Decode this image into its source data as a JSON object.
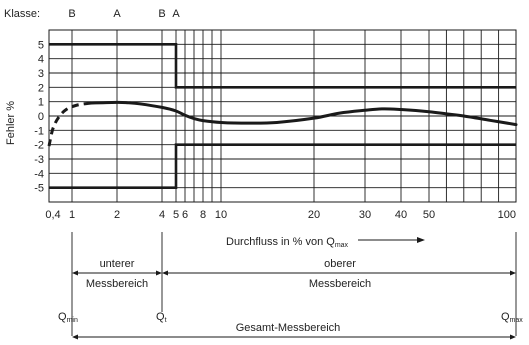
{
  "diagram": {
    "class_label": "Klasse:",
    "class_marks": [
      {
        "x": 1,
        "label": "B"
      },
      {
        "x": 2,
        "label": "A"
      },
      {
        "x": 4,
        "label": "B"
      },
      {
        "x": 5,
        "label": "A"
      }
    ],
    "y_axis_label": "Fehler %",
    "y_ticks": [
      5,
      4,
      3,
      2,
      1,
      0,
      -1,
      -2,
      -3,
      -4,
      -5
    ],
    "y_range": [
      -6,
      6
    ],
    "x_ticks": [
      {
        "value": 0.4,
        "label": "0,4"
      },
      {
        "value": 1,
        "label": "1"
      },
      {
        "value": 2,
        "label": "2"
      },
      {
        "value": 4,
        "label": "4"
      },
      {
        "value": 5,
        "label": "5"
      },
      {
        "value": 6,
        "label": "6"
      },
      {
        "value": 8,
        "label": "8"
      },
      {
        "value": 10,
        "label": "10"
      },
      {
        "value": 20,
        "label": "20"
      },
      {
        "value": 30,
        "label": "30"
      },
      {
        "value": 40,
        "label": "40"
      },
      {
        "value": 50,
        "label": "50"
      },
      {
        "value": 100,
        "label": "100"
      }
    ],
    "x_gridlines": [
      1,
      2,
      4,
      5,
      6,
      7,
      8,
      9,
      10,
      20,
      30,
      40,
      50,
      60,
      70,
      80,
      90
    ],
    "x_axis_label": {
      "text": "Durchfluss in % von Q",
      "subscript": "max"
    },
    "error_limits": {
      "upper": [
        {
          "from": 0.4,
          "to": 5,
          "value": 5
        },
        {
          "from": 5,
          "to": 100,
          "value": 2
        }
      ],
      "lower": [
        {
          "from": 0.4,
          "to": 5,
          "value": -5
        },
        {
          "from": 5,
          "to": 100,
          "value": -2
        }
      ]
    },
    "error_curve": {
      "dashed": [
        [
          0.4,
          -2.1
        ],
        [
          0.5,
          -0.9
        ],
        [
          0.65,
          -0.1
        ],
        [
          0.85,
          0.45
        ],
        [
          1.1,
          0.75
        ],
        [
          1.4,
          0.9
        ]
      ],
      "solid": [
        [
          1.4,
          0.9
        ],
        [
          2,
          0.95
        ],
        [
          2.5,
          0.92
        ],
        [
          3,
          0.85
        ],
        [
          4,
          0.6
        ],
        [
          5,
          0.35
        ],
        [
          6,
          0.05
        ],
        [
          7,
          -0.18
        ],
        [
          8,
          -0.32
        ],
        [
          10,
          -0.45
        ],
        [
          13,
          -0.5
        ],
        [
          16,
          -0.45
        ],
        [
          20,
          -0.15
        ],
        [
          25,
          0.2
        ],
        [
          30,
          0.4
        ],
        [
          35,
          0.5
        ],
        [
          40,
          0.45
        ],
        [
          50,
          0.3
        ],
        [
          60,
          0.15
        ],
        [
          70,
          0.0
        ],
        [
          85,
          -0.3
        ],
        [
          100,
          -0.6
        ]
      ]
    },
    "ranges": {
      "lower_label_1": "unterer",
      "lower_label_2": "Messbereich",
      "upper_label_1": "oberer",
      "upper_label_2": "Messbereich",
      "total_label": "Gesamt-Messbereich"
    },
    "q_labels": {
      "qmin": {
        "main": "Q",
        "sub": "min"
      },
      "qt": {
        "main": "Q",
        "sub": "t"
      },
      "qmax": {
        "main": "Q",
        "sub": "max"
      }
    }
  }
}
